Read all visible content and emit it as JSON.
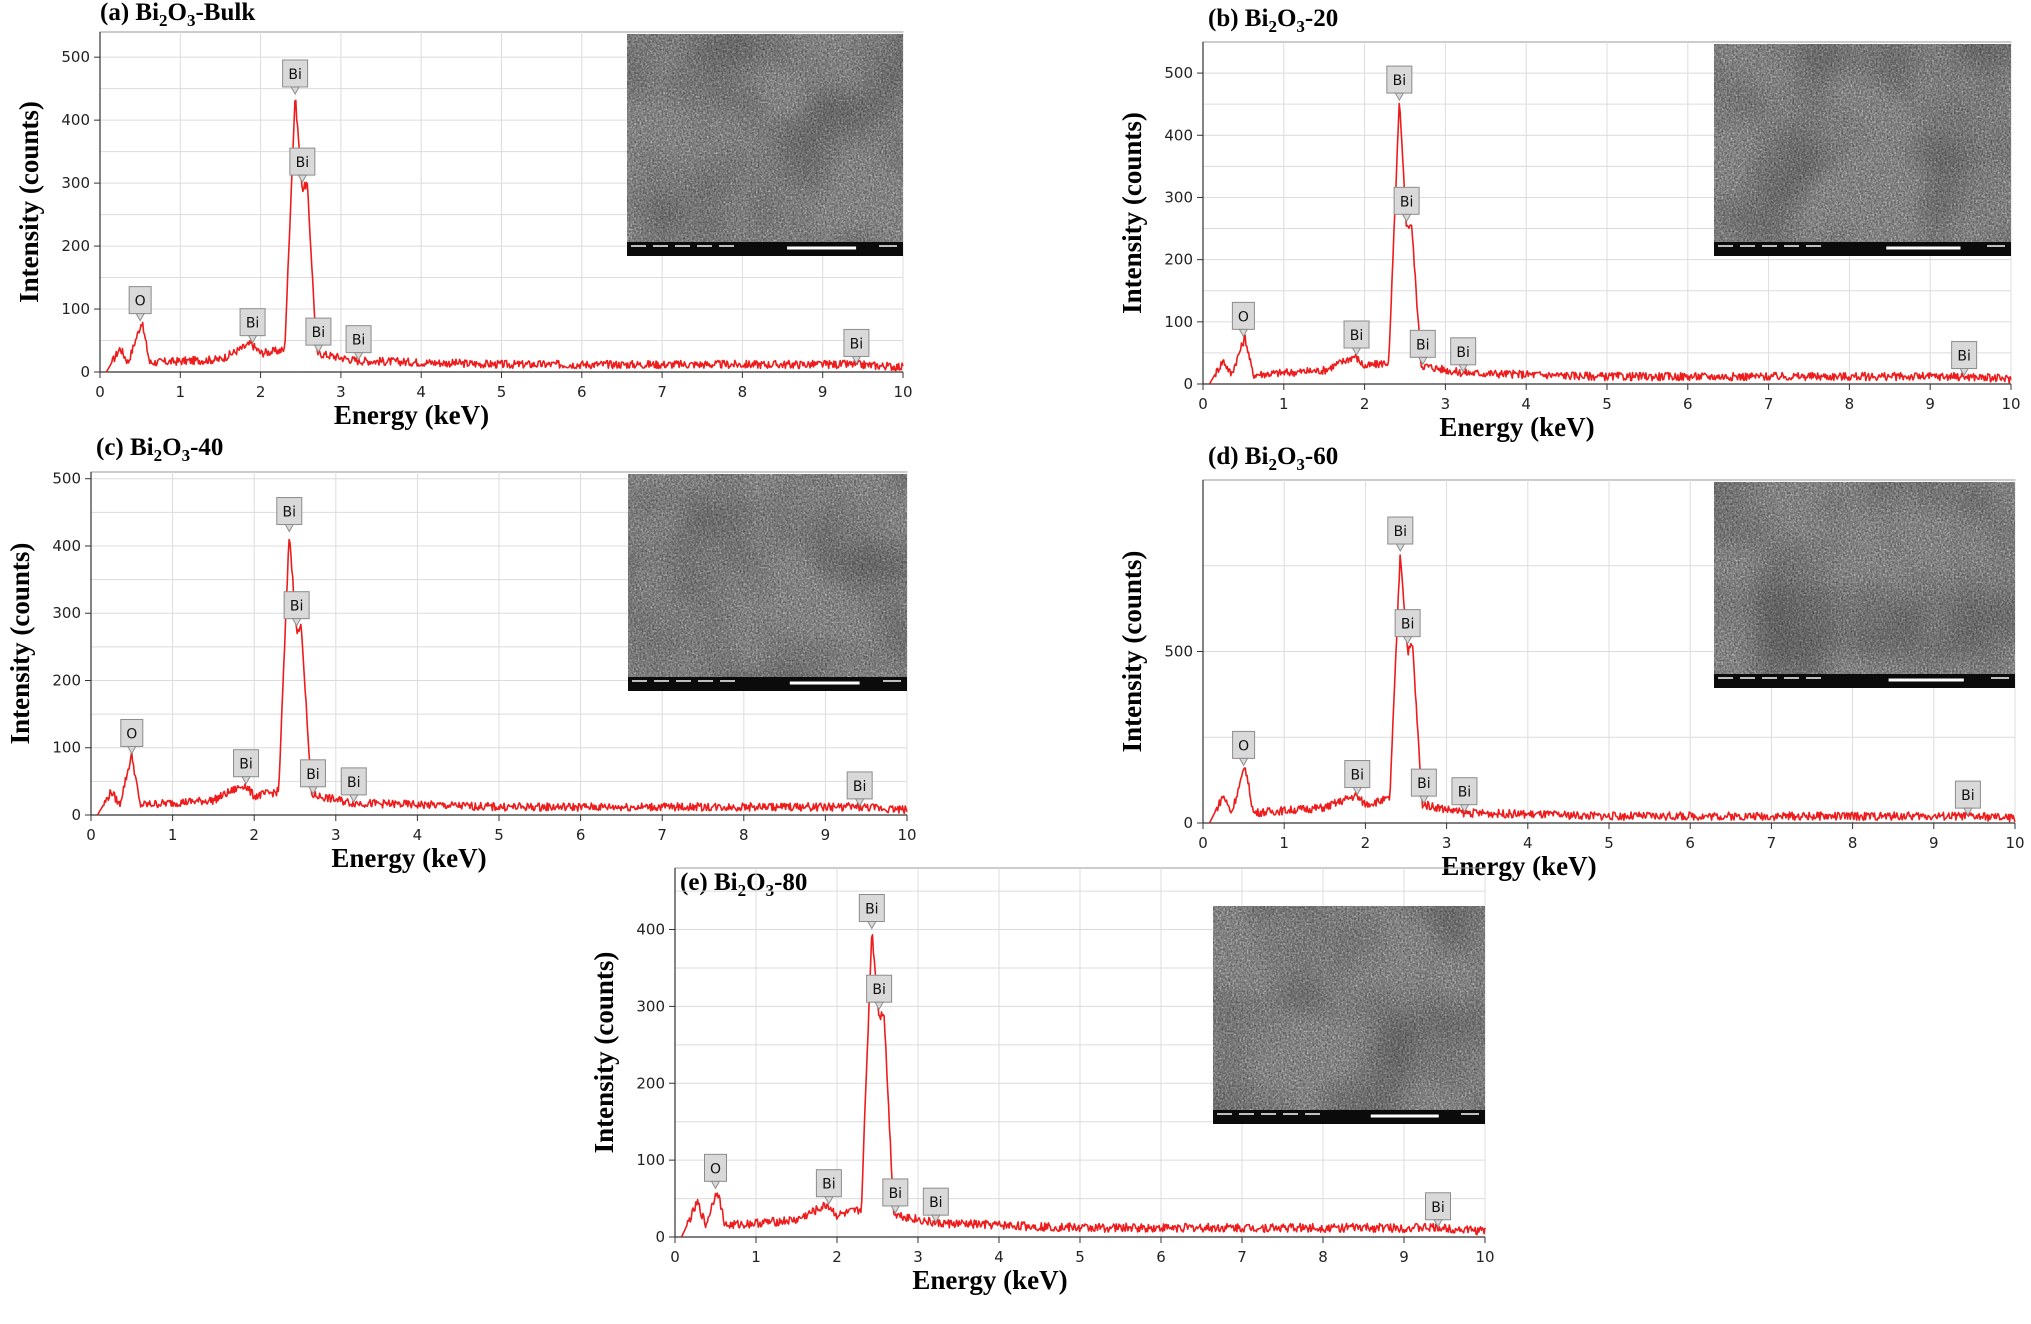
{
  "colors": {
    "spectrum": "#ee1c1c",
    "sem_dark": "#3a3a3a",
    "sem_light": "#9a9a9a"
  },
  "chart_data": [
    {
      "id": "a",
      "type": "line",
      "title_prefix": "(a) Bi",
      "title_sub1": "2",
      "title_mid": "O",
      "title_sub2": "3",
      "title_suffix": "-Bulk",
      "xlabel": "Energy (keV)",
      "ylabel": "Intensity (counts)",
      "xlim": [
        0,
        10
      ],
      "ylim": [
        0,
        540
      ],
      "xticks": [
        0,
        1,
        2,
        3,
        4,
        5,
        6,
        7,
        8,
        9,
        10
      ],
      "yticks": [
        0,
        100,
        200,
        300,
        400,
        500
      ],
      "grid": true,
      "inset": "SEM micrograph (top-right)",
      "peaks": [
        {
          "x": 0.08,
          "y": 0
        },
        {
          "x": 0.25,
          "y": 38
        },
        {
          "x": 0.35,
          "y": 15
        },
        {
          "x": 0.52,
          "y": 80
        },
        {
          "x": 0.62,
          "y": 15
        },
        {
          "x": 1.5,
          "y": 20
        },
        {
          "x": 1.88,
          "y": 45
        },
        {
          "x": 2.0,
          "y": 30
        },
        {
          "x": 2.3,
          "y": 35
        },
        {
          "x": 2.43,
          "y": 440
        },
        {
          "x": 2.52,
          "y": 290
        },
        {
          "x": 2.58,
          "y": 300
        },
        {
          "x": 2.7,
          "y": 30
        },
        {
          "x": 3.2,
          "y": 18
        },
        {
          "x": 5,
          "y": 12
        },
        {
          "x": 9.4,
          "y": 12
        },
        {
          "x": 10,
          "y": 8
        }
      ],
      "labels": [
        {
          "text": "O",
          "x": 0.5,
          "y": 80
        },
        {
          "text": "Bi",
          "x": 1.9,
          "y": 45
        },
        {
          "text": "Bi",
          "x": 2.43,
          "y": 440
        },
        {
          "text": "Bi",
          "x": 2.52,
          "y": 300
        },
        {
          "text": "Bi",
          "x": 2.72,
          "y": 30
        },
        {
          "text": "Bi",
          "x": 3.22,
          "y": 18
        },
        {
          "text": "Bi",
          "x": 9.42,
          "y": 12
        }
      ]
    },
    {
      "id": "b",
      "type": "line",
      "title_prefix": "(b) Bi",
      "title_sub1": "2",
      "title_mid": "O",
      "title_sub2": "3",
      "title_suffix": "-20",
      "xlabel": "Energy (keV)",
      "ylabel": "Intensity (counts)",
      "xlim": [
        0,
        10
      ],
      "ylim": [
        0,
        550
      ],
      "xticks": [
        0,
        1,
        2,
        3,
        4,
        5,
        6,
        7,
        8,
        9,
        10
      ],
      "yticks": [
        0,
        100,
        200,
        300,
        400,
        500
      ],
      "grid": true,
      "inset": "SEM micrograph (top-right)",
      "peaks": [
        {
          "x": 0.08,
          "y": 0
        },
        {
          "x": 0.25,
          "y": 38
        },
        {
          "x": 0.35,
          "y": 15
        },
        {
          "x": 0.52,
          "y": 75
        },
        {
          "x": 0.62,
          "y": 15
        },
        {
          "x": 1.5,
          "y": 22
        },
        {
          "x": 1.88,
          "y": 45
        },
        {
          "x": 2.0,
          "y": 28
        },
        {
          "x": 2.3,
          "y": 35
        },
        {
          "x": 2.43,
          "y": 455
        },
        {
          "x": 2.52,
          "y": 250
        },
        {
          "x": 2.58,
          "y": 260
        },
        {
          "x": 2.7,
          "y": 30
        },
        {
          "x": 3.2,
          "y": 18
        },
        {
          "x": 5,
          "y": 12
        },
        {
          "x": 9.4,
          "y": 12
        },
        {
          "x": 10,
          "y": 8
        }
      ],
      "labels": [
        {
          "text": "O",
          "x": 0.5,
          "y": 75
        },
        {
          "text": "Bi",
          "x": 1.9,
          "y": 45
        },
        {
          "text": "Bi",
          "x": 2.43,
          "y": 455
        },
        {
          "text": "Bi",
          "x": 2.52,
          "y": 260
        },
        {
          "text": "Bi",
          "x": 2.72,
          "y": 30
        },
        {
          "text": "Bi",
          "x": 3.22,
          "y": 18
        },
        {
          "text": "Bi",
          "x": 9.42,
          "y": 12
        }
      ]
    },
    {
      "id": "c",
      "type": "line",
      "title_prefix": "(c) Bi",
      "title_sub1": "2",
      "title_mid": "O",
      "title_sub2": "3",
      "title_suffix": "-40",
      "xlabel": "Energy (keV)",
      "ylabel": "Intensity (counts)",
      "xlim": [
        0,
        10
      ],
      "ylim": [
        0,
        510
      ],
      "xticks": [
        0,
        1,
        2,
        3,
        4,
        5,
        6,
        7,
        8,
        9,
        10
      ],
      "yticks": [
        0,
        100,
        200,
        300,
        400,
        500
      ],
      "grid": true,
      "inset": "SEM micrograph (top-right)",
      "peaks": [
        {
          "x": 0.08,
          "y": 0
        },
        {
          "x": 0.25,
          "y": 35
        },
        {
          "x": 0.35,
          "y": 15
        },
        {
          "x": 0.5,
          "y": 90
        },
        {
          "x": 0.6,
          "y": 15
        },
        {
          "x": 1.5,
          "y": 22
        },
        {
          "x": 1.88,
          "y": 45
        },
        {
          "x": 2.0,
          "y": 28
        },
        {
          "x": 2.3,
          "y": 35
        },
        {
          "x": 2.43,
          "y": 420
        },
        {
          "x": 2.52,
          "y": 270
        },
        {
          "x": 2.58,
          "y": 280
        },
        {
          "x": 2.7,
          "y": 30
        },
        {
          "x": 3.2,
          "y": 18
        },
        {
          "x": 5,
          "y": 12
        },
        {
          "x": 9.4,
          "y": 12
        },
        {
          "x": 10,
          "y": 8
        }
      ],
      "labels": [
        {
          "text": "O",
          "x": 0.5,
          "y": 90
        },
        {
          "text": "Bi",
          "x": 1.9,
          "y": 45
        },
        {
          "text": "Bi",
          "x": 2.43,
          "y": 420
        },
        {
          "text": "Bi",
          "x": 2.52,
          "y": 280
        },
        {
          "text": "Bi",
          "x": 2.72,
          "y": 30
        },
        {
          "text": "Bi",
          "x": 3.22,
          "y": 18
        },
        {
          "text": "Bi",
          "x": 9.42,
          "y": 12
        }
      ]
    },
    {
      "id": "d",
      "type": "line",
      "title_prefix": "(d) Bi",
      "title_sub1": "2",
      "title_mid": "O",
      "title_sub2": "3",
      "title_suffix": "-60",
      "xlabel": "Energy (keV)",
      "ylabel": "Intensity (counts)",
      "xlim": [
        0,
        10
      ],
      "ylim": [
        0,
        1000
      ],
      "xticks": [
        0,
        1,
        2,
        3,
        4,
        5,
        6,
        7,
        8,
        9,
        10
      ],
      "yticks": [
        0,
        500
      ],
      "grid": true,
      "inset": "SEM micrograph (top-right)",
      "peaks": [
        {
          "x": 0.08,
          "y": 0
        },
        {
          "x": 0.25,
          "y": 80
        },
        {
          "x": 0.35,
          "y": 30
        },
        {
          "x": 0.52,
          "y": 165
        },
        {
          "x": 0.62,
          "y": 30
        },
        {
          "x": 1.5,
          "y": 45
        },
        {
          "x": 1.88,
          "y": 80
        },
        {
          "x": 2.0,
          "y": 55
        },
        {
          "x": 2.3,
          "y": 70
        },
        {
          "x": 2.43,
          "y": 790
        },
        {
          "x": 2.52,
          "y": 500
        },
        {
          "x": 2.58,
          "y": 520
        },
        {
          "x": 2.7,
          "y": 55
        },
        {
          "x": 3.2,
          "y": 30
        },
        {
          "x": 5,
          "y": 20
        },
        {
          "x": 9.4,
          "y": 20
        },
        {
          "x": 10,
          "y": 14
        }
      ],
      "labels": [
        {
          "text": "O",
          "x": 0.5,
          "y": 165
        },
        {
          "text": "Bi",
          "x": 1.9,
          "y": 80
        },
        {
          "text": "Bi",
          "x": 2.43,
          "y": 790
        },
        {
          "text": "Bi",
          "x": 2.52,
          "y": 520
        },
        {
          "text": "Bi",
          "x": 2.72,
          "y": 55
        },
        {
          "text": "Bi",
          "x": 3.22,
          "y": 30
        },
        {
          "text": "Bi",
          "x": 9.42,
          "y": 20
        }
      ]
    },
    {
      "id": "e",
      "type": "line",
      "title_prefix": "(e) Bi",
      "title_sub1": "2",
      "title_mid": "O",
      "title_sub2": "3",
      "title_suffix": "-80",
      "xlabel": "Energy (keV)",
      "ylabel": "Intensity (counts)",
      "xlim": [
        0,
        10
      ],
      "ylim": [
        0,
        480
      ],
      "xticks": [
        0,
        1,
        2,
        3,
        4,
        5,
        6,
        7,
        8,
        9,
        10
      ],
      "yticks": [
        0,
        100,
        200,
        300,
        400
      ],
      "grid": true,
      "inset": "SEM micrograph (top-right)",
      "peaks": [
        {
          "x": 0.08,
          "y": 0
        },
        {
          "x": 0.28,
          "y": 45
        },
        {
          "x": 0.38,
          "y": 15
        },
        {
          "x": 0.52,
          "y": 62
        },
        {
          "x": 0.62,
          "y": 15
        },
        {
          "x": 1.5,
          "y": 22
        },
        {
          "x": 1.88,
          "y": 42
        },
        {
          "x": 2.0,
          "y": 28
        },
        {
          "x": 2.3,
          "y": 35
        },
        {
          "x": 2.43,
          "y": 400
        },
        {
          "x": 2.52,
          "y": 285
        },
        {
          "x": 2.58,
          "y": 295
        },
        {
          "x": 2.7,
          "y": 30
        },
        {
          "x": 3.2,
          "y": 18
        },
        {
          "x": 5,
          "y": 12
        },
        {
          "x": 9.4,
          "y": 12
        },
        {
          "x": 10,
          "y": 8
        }
      ],
      "labels": [
        {
          "text": "O",
          "x": 0.5,
          "y": 62
        },
        {
          "text": "Bi",
          "x": 1.9,
          "y": 42
        },
        {
          "text": "Bi",
          "x": 2.43,
          "y": 400
        },
        {
          "text": "Bi",
          "x": 2.52,
          "y": 295
        },
        {
          "text": "Bi",
          "x": 2.72,
          "y": 30
        },
        {
          "text": "Bi",
          "x": 3.22,
          "y": 18
        },
        {
          "text": "Bi",
          "x": 9.42,
          "y": 12
        }
      ]
    }
  ]
}
